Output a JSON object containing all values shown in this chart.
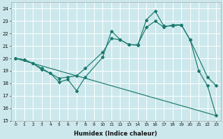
{
  "xlabel": "Humidex (Indice chaleur)",
  "bg_color": "#cce8ec",
  "grid_color": "#ffffff",
  "line_color": "#1a7a6e",
  "xlim": [
    -0.5,
    23.5
  ],
  "ylim": [
    15,
    24.5
  ],
  "yticks": [
    15,
    16,
    17,
    18,
    19,
    20,
    21,
    22,
    23,
    24
  ],
  "xticks": [
    0,
    1,
    2,
    3,
    4,
    5,
    6,
    7,
    8,
    9,
    10,
    11,
    12,
    13,
    14,
    15,
    16,
    17,
    18,
    19,
    20,
    21,
    22,
    23
  ],
  "line1_x": [
    0,
    1,
    2,
    3,
    4,
    5,
    6,
    7,
    8,
    10,
    11,
    12,
    13,
    14,
    15,
    16,
    17,
    18,
    19,
    20,
    21,
    22,
    23
  ],
  "line1_y": [
    20.0,
    19.9,
    19.6,
    19.1,
    18.8,
    18.1,
    18.3,
    17.4,
    18.5,
    20.1,
    22.2,
    21.5,
    21.1,
    21.05,
    23.1,
    23.8,
    22.6,
    22.6,
    22.7,
    21.5,
    19.0,
    17.8,
    15.4
  ],
  "line2_x": [
    0,
    1,
    2,
    3,
    5,
    6,
    7,
    8,
    10,
    11,
    12,
    13,
    14,
    15,
    16,
    17,
    18,
    19,
    20,
    22,
    23
  ],
  "line2_y": [
    20.0,
    19.9,
    19.6,
    19.2,
    18.4,
    18.5,
    18.6,
    19.2,
    20.5,
    21.6,
    21.5,
    21.1,
    21.1,
    22.5,
    23.0,
    22.5,
    22.7,
    22.7,
    21.5,
    18.5,
    17.8
  ],
  "line3_x": [
    0,
    23
  ],
  "line3_y": [
    20.0,
    15.4
  ]
}
